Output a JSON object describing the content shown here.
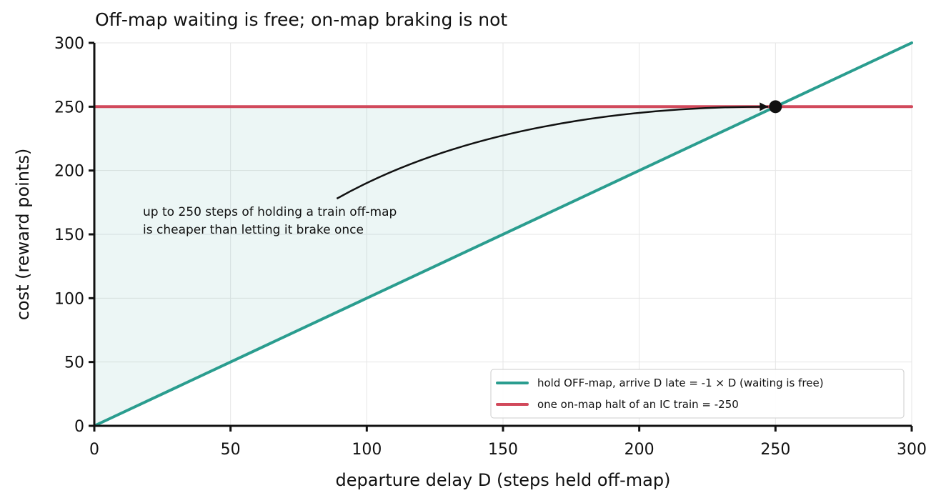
{
  "chart_data": {
    "type": "line",
    "title": "Off-map waiting is free; on-map braking is not",
    "xlabel": "departure delay  D  (steps held off-map)",
    "ylabel": "cost  (reward points)",
    "xlim": [
      0,
      300
    ],
    "ylim": [
      0,
      300
    ],
    "xticks": [
      "0",
      "50",
      "100",
      "150",
      "200",
      "250",
      "300"
    ],
    "yticks": [
      "0",
      "50",
      "100",
      "150",
      "200",
      "250",
      "300"
    ],
    "grid": true,
    "legend_position": "bottom-right",
    "series": [
      {
        "name": "hold OFF-map, arrive D late  = -1 × D  (waiting is free)",
        "x": [
          0,
          300
        ],
        "y": [
          0,
          300
        ],
        "color": "#2a9d8f"
      },
      {
        "name": "one on-map halt of an IC train  = -250",
        "x": [
          0,
          300
        ],
        "y": [
          250,
          250
        ],
        "color": "#d1495b"
      }
    ],
    "shaded_region": {
      "between": "hold-off-map line and on-map halt line",
      "x_range": [
        0,
        250
      ],
      "color": "#2a9d8f"
    },
    "marker": {
      "x": 250,
      "y": 250,
      "color": "#111111"
    },
    "annotation": {
      "lines": [
        "up to 250 steps of holding a train off-map",
        "is cheaper than letting it brake once"
      ],
      "text_at": [
        18,
        162
      ],
      "arrow_from": [
        89,
        178
      ],
      "arrow_to": [
        250,
        250
      ]
    }
  }
}
